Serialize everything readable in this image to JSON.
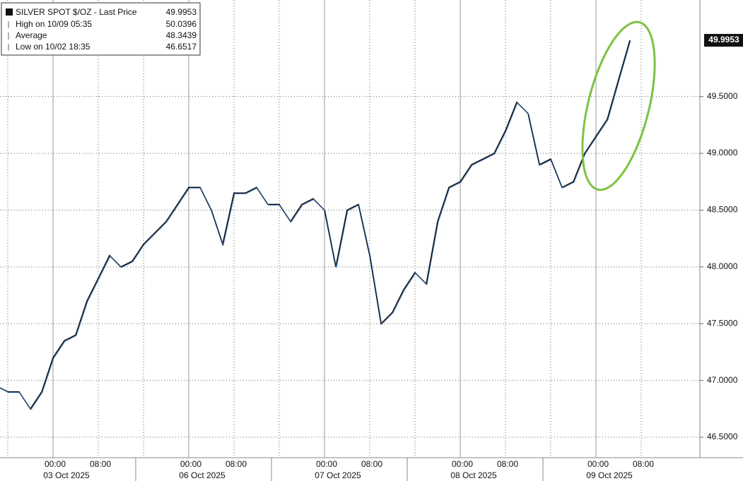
{
  "chart_data": {
    "type": "line",
    "categories": [
      null,
      null,
      null,
      null,
      null,
      "00:00",
      null,
      null,
      null,
      "08:00",
      null,
      null,
      null,
      null,
      null,
      null,
      null,
      "00:00",
      null,
      null,
      null,
      "08:00",
      null,
      null,
      null,
      null,
      null,
      null,
      null,
      "00:00",
      null,
      null,
      null,
      "08:00",
      null,
      null,
      null,
      null,
      null,
      null,
      null,
      "00:00",
      null,
      null,
      null,
      "08:00",
      null,
      null,
      null,
      null,
      null,
      null,
      null,
      "00:00",
      null,
      null,
      null,
      "08:00"
    ],
    "dates": [
      null,
      null,
      null,
      null,
      null,
      "03 Oct 2025",
      null,
      null,
      null,
      null,
      null,
      null,
      null,
      null,
      null,
      null,
      null,
      "06 Oct 2025",
      null,
      null,
      null,
      null,
      null,
      null,
      null,
      null,
      null,
      null,
      null,
      "07 Oct 2025",
      null,
      null,
      null,
      null,
      null,
      null,
      null,
      null,
      null,
      null,
      null,
      "08 Oct 2025",
      null,
      null,
      null,
      null,
      null,
      null,
      null,
      null,
      null,
      null,
      null,
      "09 Oct 2025",
      null,
      null,
      null,
      null
    ],
    "series": [
      {
        "name": "SILVER SPOT $/OZ - Last Price",
        "color": "#111111",
        "values": [
          46.95,
          46.9,
          46.9,
          46.75,
          46.9,
          47.2,
          47.35,
          47.4,
          47.7,
          47.9,
          48.1,
          48.0,
          48.05,
          48.2,
          48.3,
          48.4,
          48.55,
          48.7,
          48.7,
          48.5,
          48.2,
          48.65,
          48.65,
          48.7,
          48.55,
          48.55,
          48.4,
          48.55,
          48.6,
          48.5,
          48.0,
          48.5,
          48.55,
          48.1,
          47.5,
          47.6,
          47.8,
          47.95,
          47.85,
          48.4,
          48.7,
          48.75,
          48.9,
          48.95,
          49.0,
          49.2,
          49.45,
          49.35,
          48.9,
          48.95,
          48.7,
          48.75,
          49.0,
          49.15,
          49.3,
          49.65,
          49.9953,
          null
        ]
      }
    ],
    "stats": [
      {
        "label": "High on 10/09 05:35",
        "value": 50.0396
      },
      {
        "label": "Average",
        "value": 48.3439
      },
      {
        "label": "Low on 10/02 18:35",
        "value": 46.6517
      }
    ],
    "ylim": [
      46.32,
      50.35
    ],
    "yticks": [
      {
        "value": 46.5,
        "label": "46.5000"
      },
      {
        "value": 47,
        "label": "47.0000"
      },
      {
        "value": 47.5,
        "label": "47.5000"
      },
      {
        "value": 48,
        "label": "48.0000"
      },
      {
        "value": 48.5,
        "label": "48.5000"
      },
      {
        "value": 49,
        "label": "49.0000"
      },
      {
        "value": 49.5,
        "label": "49.5000"
      }
    ],
    "grid": true
  }
}
